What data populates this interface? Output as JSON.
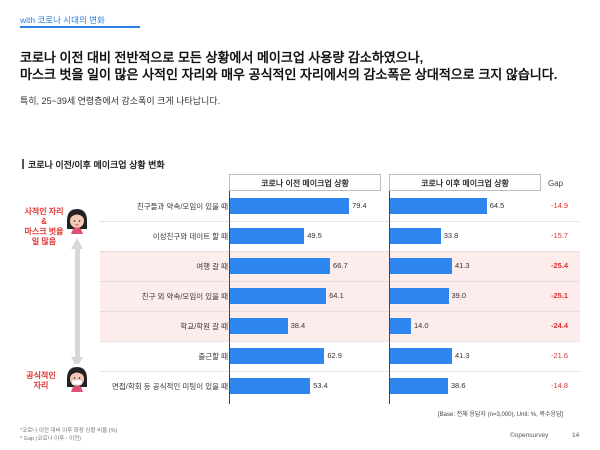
{
  "section_tag": "with 코로나 시대의 변화",
  "headline": {
    "line1": "코로나 이전 대비 전반적으로 모든 상황에서 메이크업 사용량 감소하였으나,",
    "line2": "마스크 벗을 일이 많은 사적인 자리와 매우 공식적인 자리에서의 감소폭은 상대적으로 크지 않습니다."
  },
  "subline": "특히, 25~39세 연령층에서 감소폭이 크게 나타납니다.",
  "chart_title": "코로나 이전/이후 메이크업 상황 변화",
  "side_labels": {
    "top": [
      "사적인 자리",
      "&",
      "마스크 벗을",
      "일 많음"
    ],
    "bottom": [
      "공식적인",
      "자리"
    ]
  },
  "base_note": "[Base: 전체 응답자 (n=3,000), Unit: %, 복수응답]",
  "footnotes": [
    "*코로나 이전 대비 이후 화장 상황 비율 (%)",
    "* Gap (코로나 이후 - 이전)"
  ],
  "brand": "©opensurvey",
  "page_number": "14",
  "colors": {
    "bar": "#2e86ee",
    "gap": "#e03030",
    "highlight_band": "#fcecec",
    "accent": "#2a7fe0"
  },
  "chart_data": {
    "type": "bar",
    "orientation": "horizontal",
    "title": "코로나 이전/이후 메이크업 상황 변화",
    "categories": [
      "친구들과 약속/모임이 있을 때",
      "이성친구와 데이트 할 때",
      "여행 갈 때",
      "친구 외 약속/모임이 있을 때",
      "학교/학원 갈 때",
      "출근할 때",
      "면접/학회 등 공식적인 미팅이 있을 때"
    ],
    "series": [
      {
        "name": "코로나 이전 메이크업 상황",
        "values": [
          79.4,
          49.5,
          66.7,
          64.1,
          38.4,
          62.9,
          53.4
        ]
      },
      {
        "name": "코로나 이후 메이크업 상황",
        "values": [
          64.5,
          33.8,
          41.3,
          39.0,
          14.0,
          41.3,
          38.6
        ]
      }
    ],
    "gap": {
      "label": "Gap",
      "values": [
        -14.9,
        -15.7,
        -25.4,
        -25.1,
        -24.4,
        -21.6,
        -14.8
      ],
      "bold": [
        false,
        false,
        true,
        true,
        true,
        false,
        false
      ]
    },
    "highlighted_rows": [
      2,
      3,
      4
    ],
    "xlim": [
      0,
      100
    ]
  }
}
